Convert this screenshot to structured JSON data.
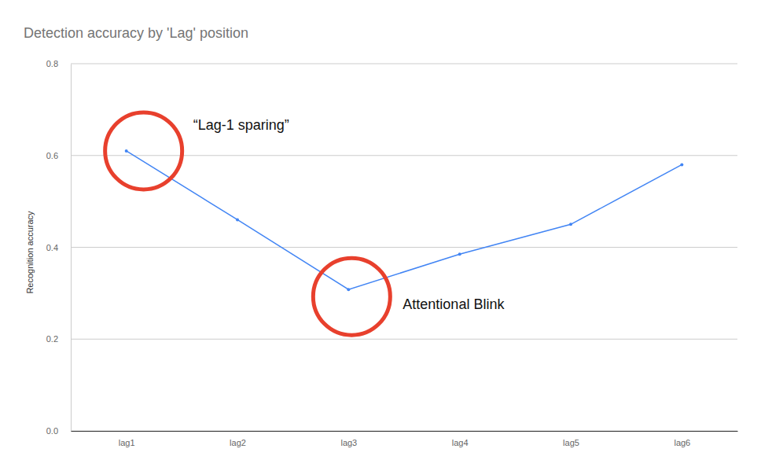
{
  "chart_data": {
    "type": "line",
    "title": "Detection accuracy by 'Lag' position",
    "y_label": "Recognition accuracy",
    "categories": [
      "lag1",
      "lag2",
      "lag3",
      "lag4",
      "lag5",
      "lag6"
    ],
    "values": [
      0.61,
      0.46,
      0.308,
      0.385,
      0.45,
      0.58
    ],
    "color": "#4285f4",
    "marker": "circle",
    "ylim": [
      0,
      0.8
    ],
    "yticks": [
      {
        "value": 0,
        "label": "0.0"
      },
      0.2,
      0.4,
      0.6,
      0.8
    ],
    "grid": true,
    "annotations": [
      {
        "text": "“Lag-1 sparing”",
        "category": "lag1"
      },
      {
        "text": "Attentional Blink",
        "category": "lag3"
      }
    ]
  }
}
